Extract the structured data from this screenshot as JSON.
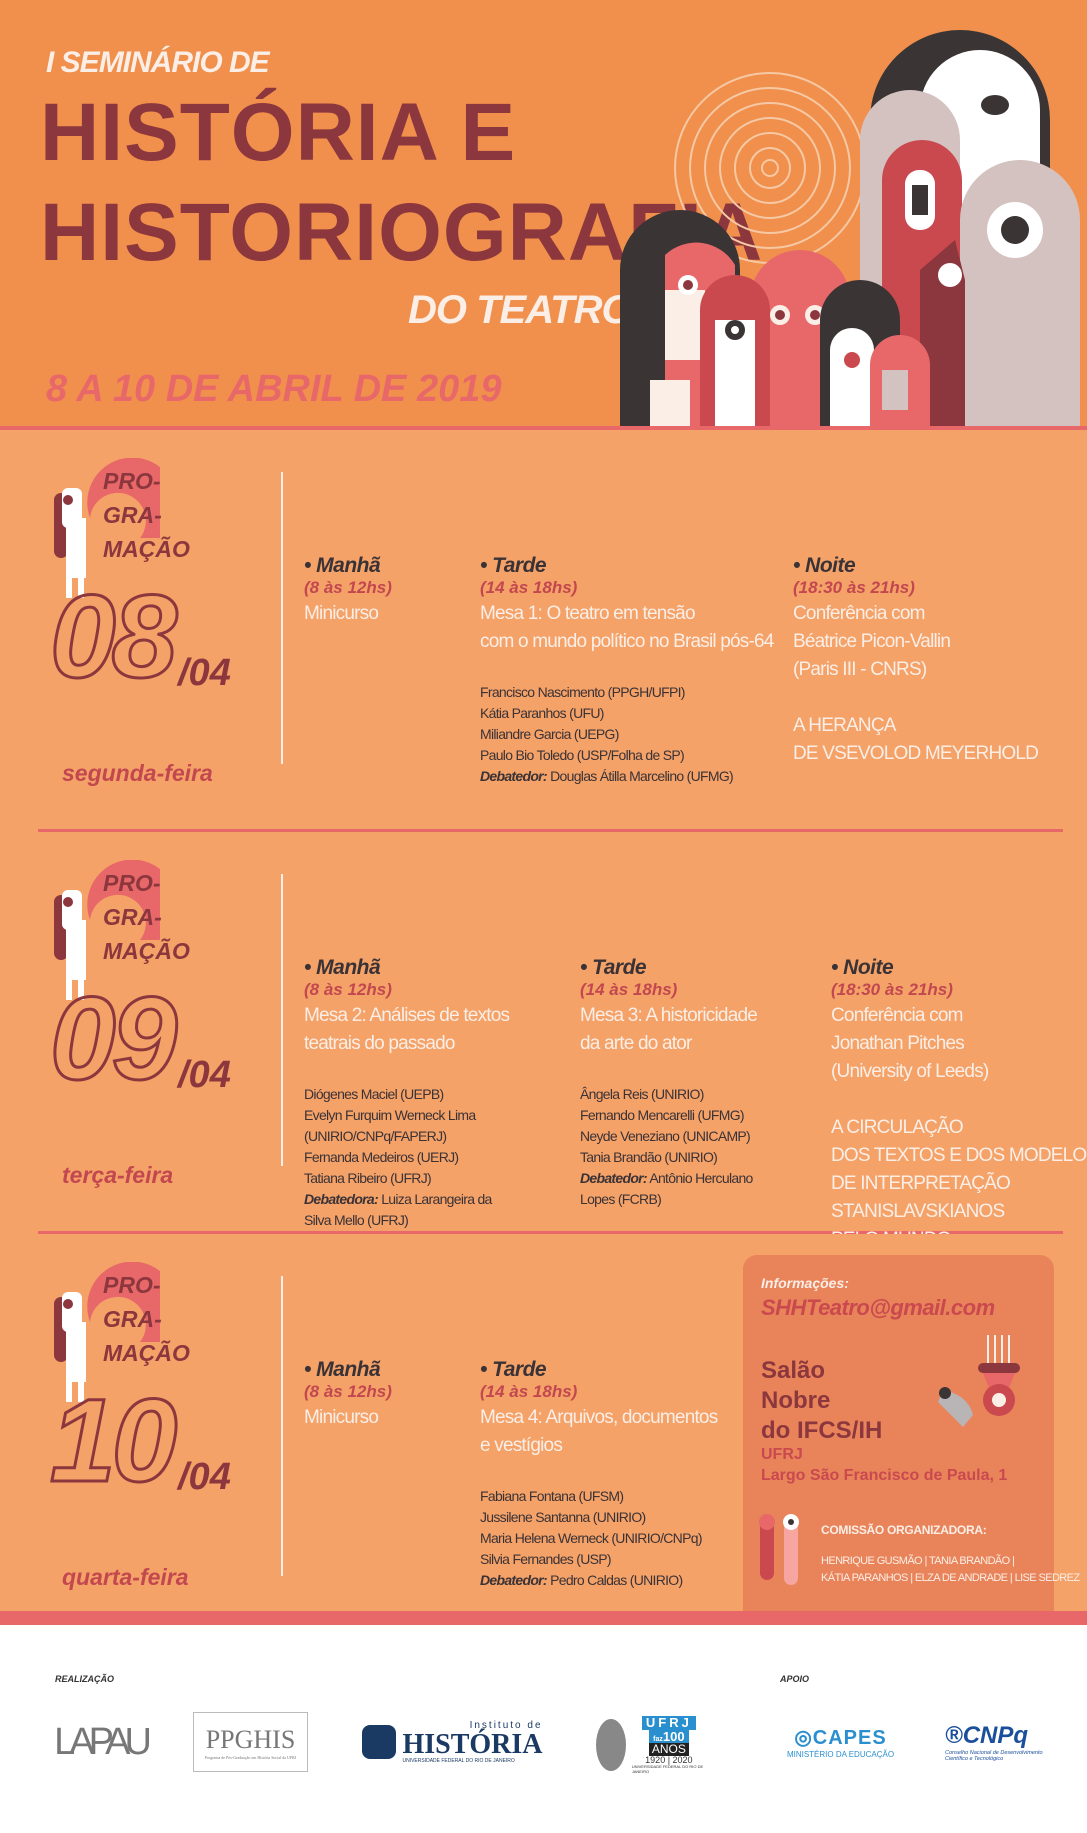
{
  "header": {
    "pre_title": "I SEMINÁRIO DE",
    "title_line1": "HISTÓRIA E",
    "title_line2": "HISTORIOGRAFIA",
    "title_line3": "DO TEATRO",
    "dates": "8 A 10 DE ABRIL DE 2019"
  },
  "colors": {
    "header_bg": "#f0904c",
    "body_bg": "#f4a268",
    "dark_red": "#8c363d",
    "pink": "#e8686a",
    "cream": "#fbeee6"
  },
  "programacao_label": [
    "PRO-",
    "GRA-",
    "MAÇÃO"
  ],
  "days": [
    {
      "day": "08",
      "month": "/04",
      "weekday": "segunda-feira",
      "sessions": [
        {
          "label": "• Manhã",
          "time": "(8 às 12hs)",
          "title": [
            "Minicurso"
          ],
          "names": [],
          "extra": []
        },
        {
          "label": "• Tarde",
          "time": "(14 às 18hs)",
          "title": [
            "Mesa 1: O teatro em tensão",
            "com o mundo político no Brasil pós-64"
          ],
          "names": [
            "Francisco Nascimento (PPGH/UFPI)",
            "Kátia Paranhos (UFU)",
            "Miliandre Garcia (UEPG)",
            "Paulo Bio Toledo (USP/Folha de SP)"
          ],
          "debater_label": "Debatedor:",
          "debater": [
            "Douglas Átilla Marcelino (UFMG)"
          ],
          "extra": []
        },
        {
          "label": "• Noite",
          "time": "(18:30 às 21hs)",
          "title": [
            "Conferência com",
            "Béatrice Picon-Vallin",
            "(Paris III - CNRS)"
          ],
          "names": [],
          "extra": [
            "A HERANÇA",
            "DE VSEVOLOD MEYERHOLD"
          ]
        }
      ]
    },
    {
      "day": "09",
      "month": "/04",
      "weekday": "terça-feira",
      "sessions": [
        {
          "label": "• Manhã",
          "time": "(8 às 12hs)",
          "title": [
            "Mesa 2: Análises de textos",
            "teatrais do passado"
          ],
          "names": [
            "Diógenes Maciel (UEPB)",
            "Evelyn Furquim Werneck Lima",
            "(UNIRIO/CNPq/FAPERJ)",
            "Fernanda Medeiros (UERJ)",
            "Tatiana Ribeiro (UFRJ)"
          ],
          "debater_label": "Debatedora:",
          "debater": [
            "Luiza Larangeira da",
            " Silva Mello (UFRJ)"
          ],
          "extra": []
        },
        {
          "label": "• Tarde",
          "time": "(14 às 18hs)",
          "title": [
            "Mesa 3: A historicidade",
            "da arte do ator"
          ],
          "names": [
            "Ângela Reis (UNIRIO)",
            "Fernando Mencarelli (UFMG)",
            "Neyde Veneziano (UNICAMP)",
            "Tania Brandão (UNIRIO)"
          ],
          "debater_label": "Debatedor:",
          "debater": [
            "Antônio Herculano",
            "Lopes (FCRB)"
          ],
          "extra": []
        },
        {
          "label": "• Noite",
          "time": "(18:30 às 21hs)",
          "title": [
            "Conferência com",
            "Jonathan Pitches",
            "(University of Leeds)"
          ],
          "names": [],
          "extra": [
            "A CIRCULAÇÃO",
            "DOS TEXTOS E DOS MODELOS",
            "DE INTERPRETAÇÃO",
            "STANISLAVSKIANOS",
            "PELO MUNDO"
          ]
        }
      ]
    },
    {
      "day": "10",
      "month": "/04",
      "weekday": "quarta-feira",
      "sessions": [
        {
          "label": "• Manhã",
          "time": "(8 às 12hs)",
          "title": [
            "Minicurso"
          ],
          "names": [],
          "extra": []
        },
        {
          "label": "• Tarde",
          "time": "(14 às 18hs)",
          "title": [
            "Mesa 4: Arquivos, documentos",
            "e vestígios"
          ],
          "names": [
            "Fabiana Fontana (UFSM)",
            "Jussilene Santanna (UNIRIO)",
            "Maria Helena Werneck (UNIRIO/CNPq)",
            "Silvia Fernandes (USP)"
          ],
          "debater_label": "Debatedor:",
          "debater": [
            "Pedro Caldas (UNIRIO)"
          ],
          "extra": []
        }
      ]
    }
  ],
  "info": {
    "label": "Informações:",
    "email": "SHHTeatro@gmail.com",
    "venue": [
      "Salão",
      "Nobre",
      "do IFCS/IH"
    ],
    "university": "UFRJ",
    "address": "Largo São Francisco de Paula, 1",
    "committee_label": "COMISSÃO ORGANIZADORA:",
    "committee": [
      "HENRIQUE GUSMÃO | TANIA BRANDÃO |",
      "KÁTIA PARANHOS | ELZA DE ANDRADE | LISE SEDREZ"
    ]
  },
  "footer": {
    "realizacao": "REALIZAÇÃO",
    "apoio": "APOIO",
    "logos": {
      "lapau": "LAPAU",
      "ppghis": "PPGHIS",
      "ppghis_sub": "Programa de Pós-Graduação em História Social da UFRJ",
      "instituto_top": "Instituto de",
      "instituto_main": "HISTÓRIA",
      "instituto_sub": "UNIVERSIDADE FEDERAL DO RIO DE JANEIRO",
      "ufrj": "UFRJ",
      "ufrj_faz": "faz",
      "ufrj_100": "100",
      "ufrj_anos": "ANOS",
      "ufrj_years": "1920 | 2020",
      "ufrj_sub": "UNIVERSIDADE FEDERAL DO RIO DE JANEIRO",
      "capes": "CAPES",
      "capes_sub": "MINISTÉRIO DA EDUCAÇÃO",
      "cnpq": "CNPq",
      "cnpq_sub": "Conselho Nacional de Desenvolvimento Científico e Tecnológico"
    }
  }
}
